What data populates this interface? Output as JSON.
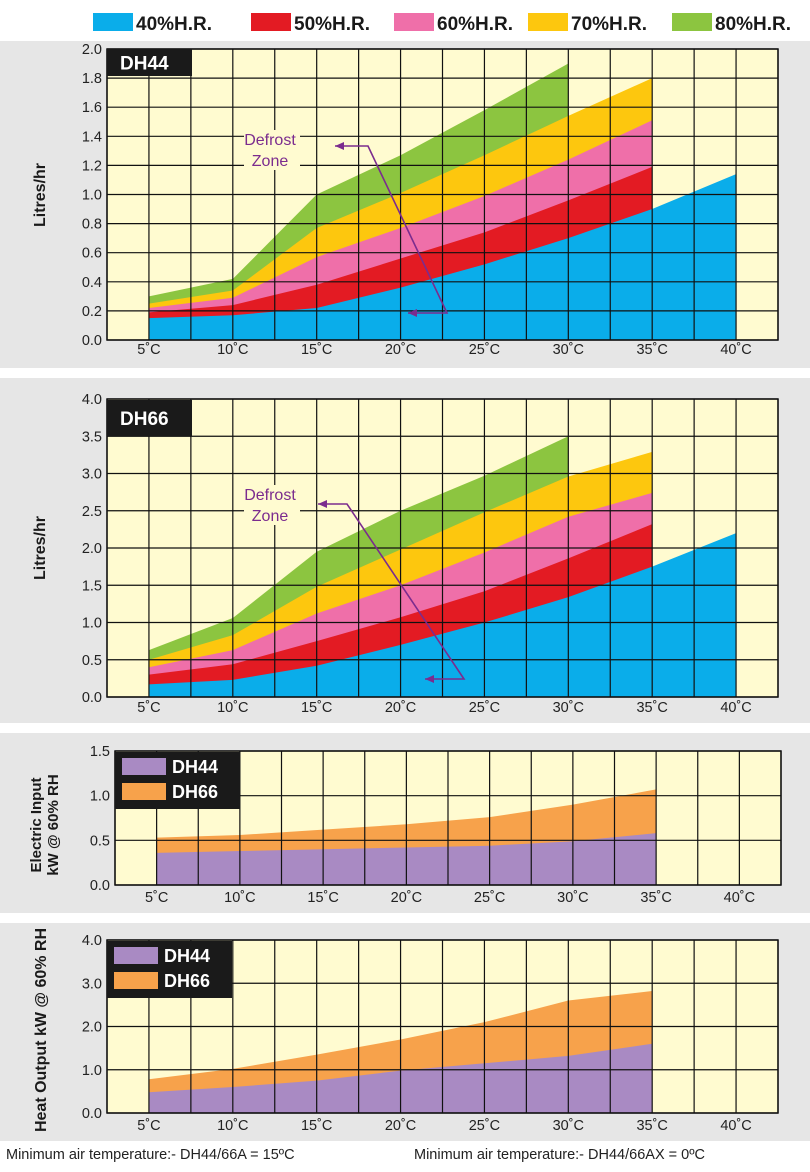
{
  "legend": {
    "items": [
      {
        "label": "40%H.R.",
        "color": "#0aadea"
      },
      {
        "label": "50%H.R.",
        "color": "#e31b23"
      },
      {
        "label": "60%H.R.",
        "color": "#ef6fa9"
      },
      {
        "label": "70%H.R.",
        "color": "#fdc70e"
      },
      {
        "label": "80%H.R.",
        "color": "#8cc540"
      }
    ]
  },
  "annotation": {
    "line1": "Defrost",
    "line2": "Zone",
    "color": "#7b2c8e"
  },
  "colors": {
    "plot_bg": "#fffbd0",
    "panel_bg": "#e6e6e6",
    "dh44_power": "#a98ac3",
    "dh66_power": "#f7a24b"
  },
  "chart_data": [
    {
      "type": "area",
      "title": "DH44",
      "xlabel": "",
      "ylabel": "Litres/hr",
      "categories": [
        "5˚C",
        "10˚C",
        "15˚C",
        "20˚C",
        "25˚C",
        "30˚C",
        "35˚C",
        "40˚C"
      ],
      "x": [
        5,
        10,
        15,
        20,
        25,
        30,
        35,
        40
      ],
      "xlim": [
        2.5,
        42.5
      ],
      "ylim": [
        0,
        2.0
      ],
      "yticks": [
        "0.0",
        "0.2",
        "0.4",
        "0.6",
        "0.8",
        "1.0",
        "1.2",
        "1.4",
        "1.6",
        "1.8",
        "2.0"
      ],
      "grid": true,
      "series": [
        {
          "name": "40%H.R.",
          "x": [
            5,
            10,
            15,
            20,
            25,
            30,
            35,
            40
          ],
          "values": [
            0.15,
            0.17,
            0.22,
            0.36,
            0.52,
            0.7,
            0.9,
            1.14
          ]
        },
        {
          "name": "50%H.R.",
          "x": [
            5,
            10,
            15,
            20,
            25,
            30,
            35
          ],
          "values": [
            0.19,
            0.24,
            0.38,
            0.56,
            0.74,
            0.96,
            1.19
          ]
        },
        {
          "name": "60%H.R.",
          "x": [
            5,
            10,
            15,
            20,
            25,
            30,
            35
          ],
          "values": [
            0.22,
            0.29,
            0.57,
            0.77,
            0.99,
            1.24,
            1.51
          ]
        },
        {
          "name": "70%H.R.",
          "x": [
            5,
            10,
            15,
            20,
            25,
            30,
            35
          ],
          "values": [
            0.25,
            0.34,
            0.77,
            1.01,
            1.27,
            1.54,
            1.8
          ]
        },
        {
          "name": "80%H.R.",
          "x": [
            5,
            10,
            15,
            20,
            25,
            30
          ],
          "values": [
            0.3,
            0.42,
            1.0,
            1.27,
            1.58,
            1.9
          ]
        }
      ]
    },
    {
      "type": "area",
      "title": "DH66",
      "xlabel": "",
      "ylabel": "Litres/hr",
      "categories": [
        "5˚C",
        "10˚C",
        "15˚C",
        "20˚C",
        "25˚C",
        "30˚C",
        "35˚C",
        "40˚C"
      ],
      "x": [
        5,
        10,
        15,
        20,
        25,
        30,
        35,
        40
      ],
      "xlim": [
        2.5,
        42.5
      ],
      "ylim": [
        0,
        4.0
      ],
      "yticks": [
        "0.0",
        "0.5",
        "1.0",
        "1.5",
        "2.0",
        "2.5",
        "3.0",
        "3.5",
        "4.0"
      ],
      "grid": true,
      "series": [
        {
          "name": "40%H.R.",
          "x": [
            5,
            10,
            15,
            20,
            25,
            30,
            35,
            40
          ],
          "values": [
            0.17,
            0.23,
            0.42,
            0.7,
            1.0,
            1.34,
            1.75,
            2.2
          ]
        },
        {
          "name": "50%H.R.",
          "x": [
            5,
            10,
            15,
            20,
            25,
            30,
            35
          ],
          "values": [
            0.3,
            0.44,
            0.75,
            1.07,
            1.42,
            1.86,
            2.32
          ]
        },
        {
          "name": "60%H.R.",
          "x": [
            5,
            10,
            15,
            20,
            25,
            30,
            35
          ],
          "values": [
            0.4,
            0.63,
            1.12,
            1.5,
            1.94,
            2.42,
            2.74
          ]
        },
        {
          "name": "70%H.R.",
          "x": [
            5,
            10,
            15,
            20,
            25,
            30,
            35
          ],
          "values": [
            0.5,
            0.83,
            1.48,
            1.98,
            2.48,
            2.96,
            3.29
          ]
        },
        {
          "name": "80%H.R.",
          "x": [
            5,
            10,
            15,
            20,
            25,
            30
          ],
          "values": [
            0.63,
            1.06,
            1.95,
            2.5,
            2.97,
            3.5
          ]
        }
      ]
    },
    {
      "type": "area",
      "title": "",
      "xlabel": "",
      "ylabel": "Electric Input kW @ 60% RH",
      "ylabel_lines": [
        "Electric Input",
        "kW @ 60% RH"
      ],
      "categories": [
        "5˚C",
        "10˚C",
        "15˚C",
        "20˚C",
        "25˚C",
        "30˚C",
        "35˚C",
        "40˚C"
      ],
      "x": [
        5,
        10,
        15,
        20,
        25,
        30,
        35,
        40
      ],
      "xlim": [
        2.5,
        42.5
      ],
      "ylim": [
        0,
        1.5
      ],
      "yticks": [
        "0.0",
        "0.5",
        "1.0",
        "1.5"
      ],
      "grid": true,
      "legend": [
        {
          "label": "DH44",
          "color": "#a98ac3"
        },
        {
          "label": "DH66",
          "color": "#f7a24b"
        }
      ],
      "series": [
        {
          "name": "DH44",
          "x": [
            5,
            10,
            15,
            20,
            25,
            30,
            35
          ],
          "values": [
            0.36,
            0.38,
            0.4,
            0.42,
            0.44,
            0.49,
            0.58
          ]
        },
        {
          "name": "DH66",
          "x": [
            5,
            10,
            15,
            20,
            25,
            30,
            35
          ],
          "values": [
            0.53,
            0.56,
            0.62,
            0.68,
            0.76,
            0.9,
            1.07
          ]
        }
      ]
    },
    {
      "type": "area",
      "title": "",
      "xlabel": "",
      "ylabel": "Heat Output kW @ 60% RH",
      "categories": [
        "5˚C",
        "10˚C",
        "15˚C",
        "20˚C",
        "25˚C",
        "30˚C",
        "35˚C",
        "40˚C"
      ],
      "x": [
        5,
        10,
        15,
        20,
        25,
        30,
        35,
        40
      ],
      "xlim": [
        2.5,
        42.5
      ],
      "ylim": [
        0,
        4.0
      ],
      "yticks": [
        "0.0",
        "1.0",
        "2.0",
        "3.0",
        "4.0"
      ],
      "grid": true,
      "legend": [
        {
          "label": "DH44",
          "color": "#a98ac3"
        },
        {
          "label": "DH66",
          "color": "#f7a24b"
        }
      ],
      "series": [
        {
          "name": "DH44",
          "x": [
            5,
            10,
            15,
            20,
            25,
            30,
            35
          ],
          "values": [
            0.48,
            0.6,
            0.75,
            0.98,
            1.15,
            1.32,
            1.6
          ]
        },
        {
          "name": "DH66",
          "x": [
            5,
            10,
            15,
            20,
            25,
            30,
            35
          ],
          "values": [
            0.78,
            1.02,
            1.35,
            1.7,
            2.1,
            2.6,
            2.82
          ]
        }
      ]
    }
  ],
  "footer": {
    "left": "Minimum air temperature:- DH44/66A = 15ºC",
    "right": "Minimum air temperature:- DH44/66AX = 0ºC"
  }
}
